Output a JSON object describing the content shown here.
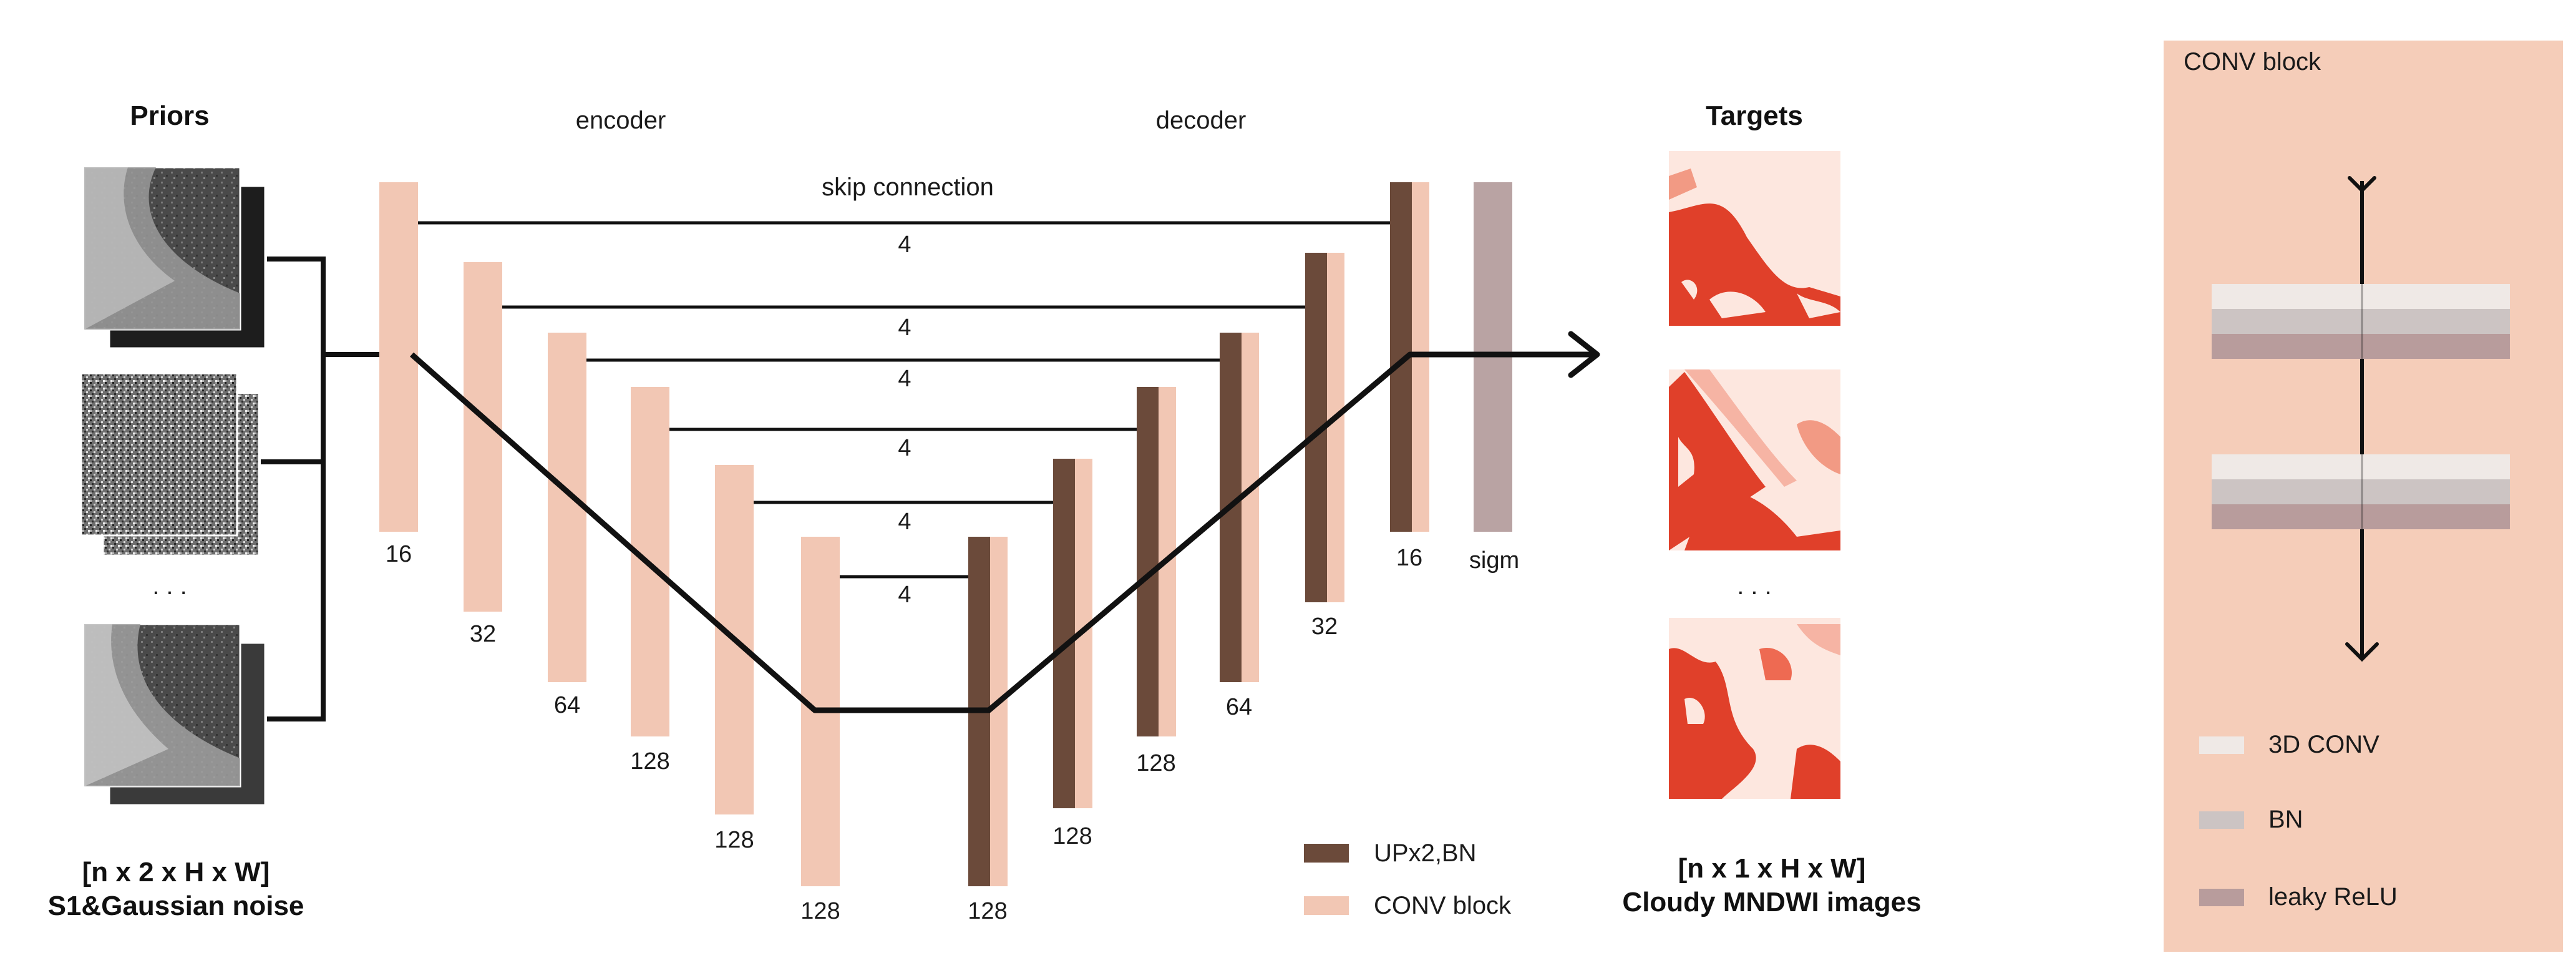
{
  "priors": {
    "title": "Priors",
    "caption_line1": "[n x 2 x H x W]",
    "caption_line2": "S1&Gaussian noise",
    "ellipsis": ". . ."
  },
  "targets": {
    "title": "Targets",
    "caption_line1": "[n x 1 x H x W]",
    "caption_line2": "Cloudy MNDWI images",
    "ellipsis": ". . ."
  },
  "network": {
    "encoder_label": "encoder",
    "decoder_label": "decoder",
    "skip_label": "skip connection",
    "skip_values": [
      "4",
      "4",
      "4",
      "4",
      "4",
      "4"
    ],
    "encoder_channels": [
      "16",
      "32",
      "64",
      "128",
      "128",
      "128"
    ],
    "decoder_channels": [
      "128",
      "128",
      "128",
      "64",
      "32",
      "16"
    ],
    "output_label": "sigm"
  },
  "legend": {
    "upsample": "UPx2,BN",
    "conv_block": "CONV block"
  },
  "conv_block_panel": {
    "title": "CONV block",
    "legend": [
      "3D CONV",
      "BN",
      "leaky ReLU"
    ]
  },
  "colors": {
    "conv_block": "#f2c7b4",
    "upsample": "#6b4a3a",
    "sigmoid": "#b9a3a3",
    "panel_bg": "#f5cdb9",
    "target_red": "#e0402a",
    "layer_3dconv": "#efe9e6",
    "layer_bn": "#ccc4c3",
    "layer_leaky_relu": "#b89c9c"
  }
}
